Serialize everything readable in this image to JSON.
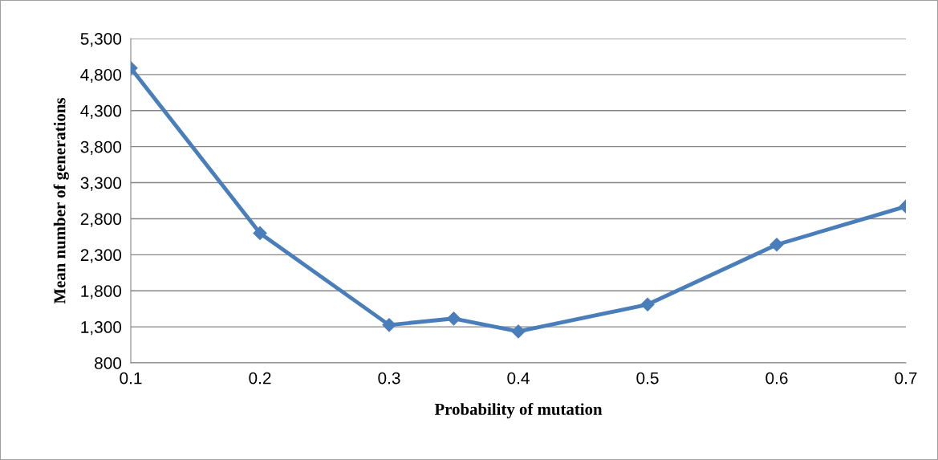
{
  "chart_data": {
    "type": "line",
    "xlabel": "Probability of mutation",
    "ylabel": "Mean number of generations",
    "x": [
      0.1,
      0.2,
      0.3,
      0.35,
      0.4,
      0.5,
      0.6,
      0.7
    ],
    "series": [
      {
        "color": "#4a7ebb",
        "values": [
          4890,
          2600,
          1325,
          1415,
          1235,
          1610,
          2440,
          2970
        ]
      }
    ],
    "xlim": [
      0.1,
      0.7
    ],
    "xticks": [
      0.1,
      0.2,
      0.3,
      0.4,
      0.5,
      0.6,
      0.7
    ],
    "ylim": [
      800,
      5300
    ],
    "yticks": [
      {
        "value": 800,
        "label": "800"
      },
      {
        "value": 1300,
        "label": "1,300"
      },
      {
        "value": 1800,
        "label": "1,800"
      },
      {
        "value": 2300,
        "label": "2,300"
      },
      {
        "value": 2800,
        "label": "2,800"
      },
      {
        "value": 3300,
        "label": "3,300"
      },
      {
        "value": 3800,
        "label": "3,800"
      },
      {
        "value": 4300,
        "label": "4,300"
      },
      {
        "value": 4800,
        "label": "4,800"
      },
      {
        "value": 5300,
        "label": "5,300"
      }
    ],
    "grid": "y",
    "marker": "diamond",
    "line_style": "solid",
    "legend": false
  }
}
